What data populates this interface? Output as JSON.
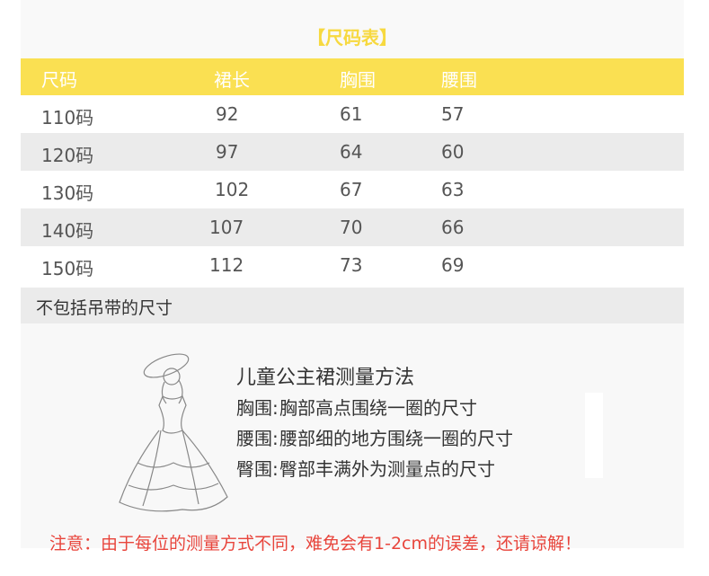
{
  "title": "【尺码表】",
  "headers": [
    "尺码",
    "裙长",
    "胸围",
    "腰围"
  ],
  "rows": [
    [
      "110码",
      "92",
      "61",
      "57"
    ],
    [
      "120码",
      "97",
      "64",
      "60"
    ],
    [
      "130码",
      "102",
      "67",
      "63"
    ],
    [
      "140码",
      "107",
      "70",
      "66"
    ],
    [
      "150码",
      "112",
      "73",
      "69"
    ]
  ],
  "note": "不包括吊带的尺寸",
  "measure": {
    "title": "儿童公主裙测量方法",
    "items": [
      {
        "label": "胸围:",
        "text": "胸部高点围绕一圈的尺寸"
      },
      {
        "label": "腰围:",
        "text": "腰部细的地方围绕一圈的尺寸"
      },
      {
        "label": "臀围:",
        "text": "臀部丰满外为测量点的尺寸"
      }
    ]
  },
  "warning": "注意：由于每位的测量方式不同，难免会有1-2cm的误差，还请谅解！",
  "colors": {
    "header": "#fae052",
    "title": "#f7d940",
    "warning": "#e8453c"
  }
}
